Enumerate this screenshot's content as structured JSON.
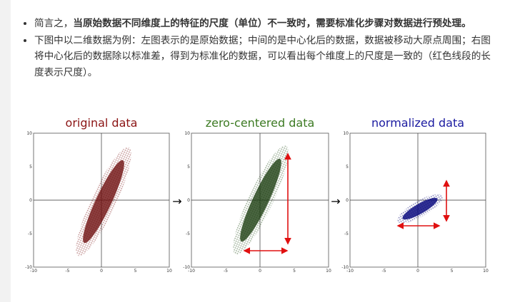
{
  "bullets": [
    {
      "segments": [
        {
          "text": "简言之，",
          "bold": false
        },
        {
          "text": "当原始数据不同维度上的特征的尺度（单位）不一致时，需要标准化步骤对数据进行预处理。",
          "bold": true
        }
      ]
    },
    {
      "segments": [
        {
          "text": "下图中以二维数据为例：左图表示的是原始数据；中间的是中心化后的数据，数据被移动大原点周围；右图将中心化后的数据除以标准差，得到为标准化的数据，可以看出每个维度上的尺度是一致的（红色线段的长度表示尺度）。",
          "bold": false
        }
      ]
    }
  ],
  "figure": {
    "panels": [
      {
        "title": "original data",
        "color": "#8b1414"
      },
      {
        "title": "zero-centered data",
        "color": "#3c7a22"
      },
      {
        "title": "normalized data",
        "color": "#1a1aa0"
      }
    ],
    "arrow": "→",
    "axis_lim": [
      -10,
      10
    ],
    "axis_ticks": [
      -10,
      -5,
      0,
      5,
      10
    ]
  }
}
